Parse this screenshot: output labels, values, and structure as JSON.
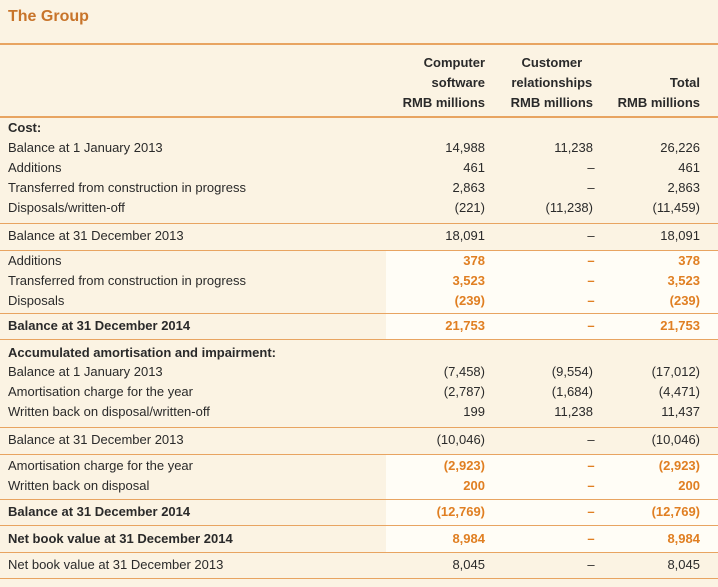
{
  "title": "The Group",
  "headers": {
    "col1": [
      "Computer",
      "software",
      "RMB millions"
    ],
    "col2": [
      "Customer",
      "relationships",
      "RMB millions"
    ],
    "col3": [
      "Total",
      "RMB millions"
    ]
  },
  "rows": [
    {
      "label": "Cost:",
      "v1": "",
      "v2": "",
      "v3": ""
    },
    {
      "label": "Balance at 1 January 2013",
      "v1": "14,988",
      "v2": "11,238",
      "v3": "26,226"
    },
    {
      "label": "Additions",
      "v1": "461",
      "v2": "–",
      "v3": "461"
    },
    {
      "label": "Transferred from construction in progress",
      "v1": "2,863",
      "v2": "–",
      "v3": "2,863"
    },
    {
      "label": "Disposals/written-off",
      "v1": "(221)",
      "v2": "(11,238)",
      "v3": "(11,459)"
    },
    {
      "label": "Balance at 31 December 2013",
      "v1": "18,091",
      "v2": "–",
      "v3": "18,091"
    },
    {
      "label": "Additions",
      "v1": "378",
      "v2": "–",
      "v3": "378"
    },
    {
      "label": "Transferred from construction in progress",
      "v1": "3,523",
      "v2": "–",
      "v3": "3,523"
    },
    {
      "label": "Disposals",
      "v1": "(239)",
      "v2": "–",
      "v3": "(239)"
    },
    {
      "label": "Balance at 31 December 2014",
      "v1": "21,753",
      "v2": "–",
      "v3": "21,753"
    },
    {
      "label": "Accumulated amortisation and impairment:",
      "v1": "",
      "v2": "",
      "v3": ""
    },
    {
      "label": "Balance at 1 January 2013",
      "v1": "(7,458)",
      "v2": "(9,554)",
      "v3": "(17,012)"
    },
    {
      "label": "Amortisation charge for the year",
      "v1": "(2,787)",
      "v2": "(1,684)",
      "v3": "(4,471)"
    },
    {
      "label": "Written back on disposal/written-off",
      "v1": "199",
      "v2": "11,238",
      "v3": "11,437"
    },
    {
      "label": "Balance at 31 December 2013",
      "v1": "(10,046)",
      "v2": "–",
      "v3": "(10,046)"
    },
    {
      "label": "Amortisation charge for the year",
      "v1": "(2,923)",
      "v2": "–",
      "v3": "(2,923)"
    },
    {
      "label": "Written back on disposal",
      "v1": "200",
      "v2": "–",
      "v3": "200"
    },
    {
      "label": "Balance at 31 December 2014",
      "v1": "(12,769)",
      "v2": "–",
      "v3": "(12,769)"
    },
    {
      "label": "Net book value at 31 December 2014",
      "v1": "8,984",
      "v2": "–",
      "v3": "8,984"
    },
    {
      "label": "Net book value at 31 December 2013",
      "v1": "8,045",
      "v2": "–",
      "v3": "8,045"
    }
  ],
  "colors": {
    "accent": "#e07f22",
    "title": "#c8742a",
    "rule": "#e8a461",
    "background": "#fbf3e3",
    "highlight": "#fffdf6"
  }
}
